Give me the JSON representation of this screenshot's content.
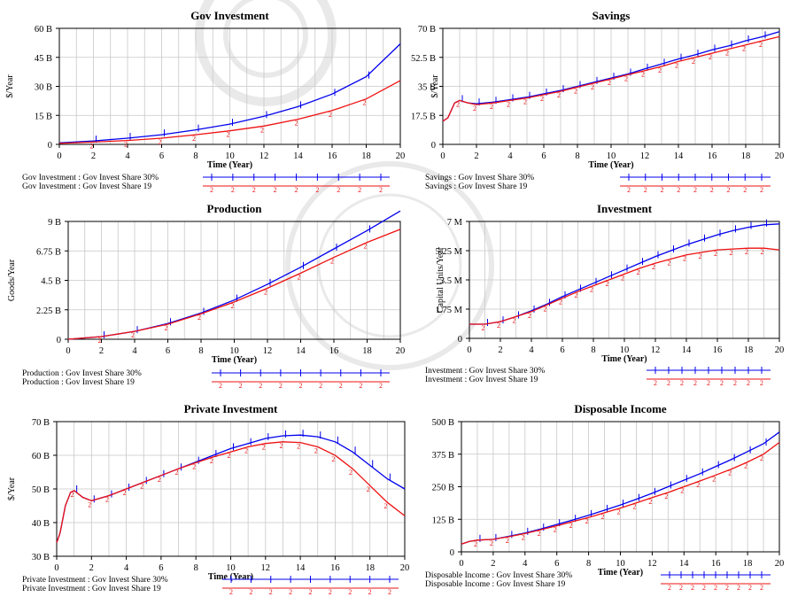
{
  "figure": {
    "legend_labels": {
      "gov_invest": "Gov Investment : Gov Invest Share 30%",
      "gov_invest_19": "Gov Investment : Gov Invest Share 19",
      "savings": "Savings : Gov Invest Share 30%",
      "savings_19": "Savings : Gov Invest Share 19",
      "production": "Production : Gov Invest Share 30%",
      "production_19": "Production : Gov Invest Share 19",
      "investment": "Investment : Gov Invest Share 30%",
      "investment_19": "Investment : Gov Invest Share 19",
      "private": "Private Investment : Gov Invest Share 30%",
      "private_19": "Private Investment : Gov Invest Share 19",
      "disposable": "Disposable Income : Gov Invest Share 30%",
      "disposable_19": "Disposable Income : Gov Invest Share 19"
    },
    "colors": {
      "series1": "#0000ee",
      "series2": "#ee1111",
      "grid": "#c8c8c8",
      "frame": "#000000"
    },
    "series1_marker": "1",
    "series2_marker": "2"
  },
  "chart_data": [
    {
      "id": "gov_investment",
      "type": "line",
      "title": "Gov Investment",
      "xlabel": "Time (Year)",
      "ylabel": "$/Year",
      "xlim": [
        0,
        20
      ],
      "ylim": [
        0,
        60
      ],
      "xticks": [
        "0",
        "2",
        "4",
        "6",
        "8",
        "10",
        "12",
        "14",
        "16",
        "18",
        "20"
      ],
      "yticks": [
        {
          "v": 0,
          "label": "0"
        },
        {
          "v": 15,
          "label": "15 B"
        },
        {
          "v": 30,
          "label": "30 B"
        },
        {
          "v": 45,
          "label": "45 B"
        },
        {
          "v": 60,
          "label": "60 B"
        }
      ],
      "x": [
        0,
        2,
        4,
        6,
        8,
        10,
        12,
        14,
        16,
        18,
        20
      ],
      "series": [
        {
          "legend_key": "gov_invest",
          "values": [
            0.8,
            1.8,
            3.2,
            5.0,
            7.5,
            10.5,
            14.5,
            19.5,
            26.0,
            35.0,
            52.0
          ]
        },
        {
          "legend_key": "gov_invest_19",
          "values": [
            0.5,
            1.2,
            2.0,
            3.2,
            5.0,
            7.0,
            9.5,
            13.0,
            17.5,
            23.5,
            33.0
          ]
        }
      ]
    },
    {
      "id": "savings",
      "type": "line",
      "title": "Savings",
      "xlabel": "Time (Year)",
      "ylabel": "$/Year",
      "xlim": [
        0,
        20
      ],
      "ylim": [
        0,
        70
      ],
      "xticks": [
        "0",
        "2",
        "4",
        "6",
        "8",
        "10",
        "12",
        "14",
        "16",
        "18",
        "20"
      ],
      "yticks": [
        {
          "v": 0,
          "label": "0"
        },
        {
          "v": 17.5,
          "label": "17.5 B"
        },
        {
          "v": 35,
          "label": "35 B"
        },
        {
          "v": 52.5,
          "label": "52.5 B"
        },
        {
          "v": 70,
          "label": "70 B"
        }
      ],
      "x": [
        0,
        0.3,
        0.7,
        1,
        1.5,
        2,
        3,
        4,
        5,
        6,
        7,
        8,
        9,
        10,
        11,
        12,
        13,
        14,
        15,
        16,
        17,
        18,
        19,
        20
      ],
      "series": [
        {
          "legend_key": "savings",
          "values": [
            14,
            16,
            25,
            26.5,
            25,
            24.5,
            25.5,
            27,
            28.5,
            30.5,
            32.5,
            35,
            37.5,
            40,
            42.5,
            45.5,
            48.5,
            51.5,
            54,
            57,
            59.5,
            62.5,
            65,
            68
          ]
        },
        {
          "legend_key": "savings_19",
          "values": [
            14,
            16,
            25,
            26.5,
            25,
            24,
            25,
            26.5,
            28,
            30,
            32,
            34.5,
            37,
            39.5,
            42,
            44.5,
            47,
            50,
            52.5,
            55,
            57.5,
            60,
            62.5,
            65
          ]
        }
      ]
    },
    {
      "id": "production",
      "type": "line",
      "title": "Production",
      "xlabel": "Time (Year)",
      "ylabel": "Goods/Year",
      "xlim": [
        0,
        20
      ],
      "ylim": [
        0,
        9
      ],
      "xticks": [
        "0",
        "2",
        "4",
        "6",
        "8",
        "10",
        "12",
        "14",
        "16",
        "18",
        "20"
      ],
      "yticks": [
        {
          "v": 0,
          "label": "0"
        },
        {
          "v": 2.25,
          "label": "2.25 B"
        },
        {
          "v": 4.5,
          "label": "4.5 B"
        },
        {
          "v": 6.75,
          "label": "6.75 B"
        },
        {
          "v": 9,
          "label": "9 B"
        }
      ],
      "x": [
        0,
        2,
        4,
        6,
        8,
        10,
        12,
        14,
        16,
        18,
        20
      ],
      "series": [
        {
          "legend_key": "production",
          "values": [
            0,
            0.2,
            0.6,
            1.2,
            2.0,
            3.0,
            4.2,
            5.5,
            6.9,
            8.3,
            9.8
          ]
        },
        {
          "legend_key": "production_19",
          "values": [
            0,
            0.2,
            0.6,
            1.15,
            1.95,
            2.85,
            3.9,
            5.05,
            6.25,
            7.4,
            8.4
          ]
        }
      ]
    },
    {
      "id": "investment",
      "type": "line",
      "title": "Investment",
      "xlabel": "Time (Year)",
      "ylabel": "Capital Units/Year",
      "xlim": [
        0,
        20
      ],
      "ylim": [
        0,
        7
      ],
      "xticks": [
        "0",
        "2",
        "4",
        "6",
        "8",
        "10",
        "12",
        "14",
        "16",
        "18",
        "20"
      ],
      "yticks": [
        {
          "v": 0,
          "label": "0"
        },
        {
          "v": 1.75,
          "label": "1.75 M"
        },
        {
          "v": 3.5,
          "label": "3.5 M"
        },
        {
          "v": 5.25,
          "label": "5.25 M"
        },
        {
          "v": 7,
          "label": "7 M"
        }
      ],
      "x": [
        0,
        1,
        2,
        3,
        4,
        5,
        6,
        7,
        8,
        9,
        10,
        11,
        12,
        13,
        14,
        15,
        16,
        17,
        18,
        19,
        20
      ],
      "series": [
        {
          "legend_key": "investment",
          "values": [
            0.85,
            0.85,
            1.0,
            1.3,
            1.65,
            2.05,
            2.5,
            2.9,
            3.3,
            3.7,
            4.1,
            4.5,
            4.9,
            5.25,
            5.6,
            5.9,
            6.2,
            6.45,
            6.65,
            6.8,
            6.85
          ]
        },
        {
          "legend_key": "investment_19",
          "values": [
            0.85,
            0.85,
            1.0,
            1.3,
            1.6,
            2.0,
            2.4,
            2.8,
            3.15,
            3.5,
            3.85,
            4.2,
            4.5,
            4.75,
            5.0,
            5.15,
            5.3,
            5.35,
            5.4,
            5.4,
            5.3
          ]
        }
      ]
    },
    {
      "id": "private_investment",
      "type": "line",
      "title": "Private Investment",
      "xlabel": "Time (Year)",
      "ylabel": "$/Year",
      "xlim": [
        0,
        20
      ],
      "ylim": [
        30,
        70
      ],
      "xticks": [
        "0",
        "2",
        "4",
        "6",
        "8",
        "10",
        "12",
        "14",
        "16",
        "18",
        "20"
      ],
      "yticks": [
        {
          "v": 30,
          "label": "30 B"
        },
        {
          "v": 40,
          "label": "40 B"
        },
        {
          "v": 50,
          "label": "50 B"
        },
        {
          "v": 60,
          "label": "60 B"
        },
        {
          "v": 70,
          "label": "70 B"
        }
      ],
      "x": [
        0,
        0.2,
        0.5,
        0.8,
        1,
        1.5,
        2,
        3,
        4,
        5,
        6,
        7,
        8,
        9,
        10,
        11,
        12,
        13,
        14,
        15,
        16,
        17,
        18,
        19,
        20
      ],
      "series": [
        {
          "legend_key": "private",
          "values": [
            34,
            37,
            45,
            49,
            49.5,
            47.5,
            46.5,
            48,
            50,
            52,
            54,
            56,
            58,
            60,
            62,
            63.5,
            65,
            65.8,
            66,
            65.5,
            64,
            61,
            57,
            53,
            50
          ]
        },
        {
          "legend_key": "private_19",
          "values": [
            34,
            37,
            45,
            49,
            49.5,
            47.5,
            46.5,
            48,
            50,
            52,
            54,
            56,
            57.8,
            59.5,
            61,
            62.5,
            63.5,
            64,
            63.8,
            62.5,
            60,
            56,
            51,
            46,
            42
          ]
        }
      ]
    },
    {
      "id": "disposable_income",
      "type": "line",
      "title": "Disposable Income",
      "xlabel": "Time (Year)",
      "ylabel": "",
      "xlim": [
        0,
        20
      ],
      "ylim": [
        0,
        500
      ],
      "xticks": [
        "0",
        "2",
        "4",
        "6",
        "8",
        "10",
        "12",
        "14",
        "16",
        "18",
        "20"
      ],
      "yticks": [
        {
          "v": 0,
          "label": "0"
        },
        {
          "v": 125,
          "label": "125 B"
        },
        {
          "v": 250,
          "label": "250 B"
        },
        {
          "v": 375,
          "label": "375 B"
        },
        {
          "v": 500,
          "label": "500 B"
        }
      ],
      "x": [
        0,
        0.5,
        1,
        2,
        3,
        4,
        5,
        6,
        7,
        8,
        9,
        10,
        11,
        12,
        13,
        14,
        15,
        16,
        17,
        18,
        19,
        20
      ],
      "series": [
        {
          "legend_key": "disposable",
          "values": [
            30,
            40,
            45,
            48,
            60,
            72,
            88,
            105,
            122,
            140,
            160,
            180,
            202,
            225,
            250,
            275,
            300,
            328,
            355,
            385,
            415,
            460
          ]
        },
        {
          "legend_key": "disposable_19",
          "values": [
            30,
            40,
            45,
            48,
            58,
            70,
            85,
            100,
            116,
            132,
            150,
            168,
            188,
            208,
            228,
            250,
            272,
            295,
            318,
            345,
            375,
            420
          ]
        }
      ]
    }
  ]
}
